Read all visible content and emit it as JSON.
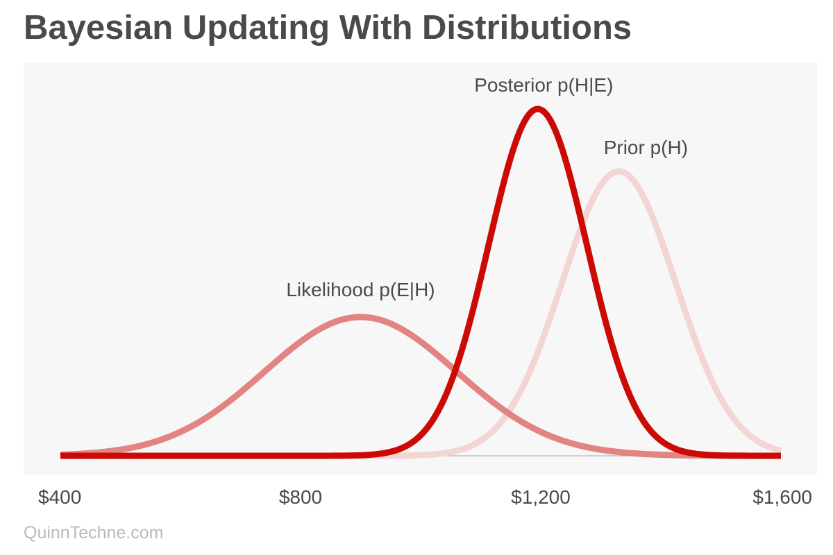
{
  "chart_data": {
    "type": "line",
    "title": "Bayesian Updating With Distributions",
    "xlabel": "",
    "ylabel": "",
    "xlim": [
      400,
      1600
    ],
    "ylim": [
      0,
      1.0
    ],
    "x_ticks": [
      {
        "value": 400,
        "label": "$400"
      },
      {
        "value": 800,
        "label": "$800"
      },
      {
        "value": 1200,
        "label": "$1,200"
      },
      {
        "value": 1600,
        "label": "$1,600"
      }
    ],
    "grid": false,
    "legend": "none",
    "series": [
      {
        "name": "Prior p(H)",
        "color": "#f3d6d4",
        "distribution": "normal",
        "mean": 1330,
        "sd": 95,
        "peak": 0.82,
        "label_x": 1375,
        "label_y": 0.87
      },
      {
        "name": "Likelihood p(E|H)",
        "color": "#e28482",
        "distribution": "normal",
        "mean": 900,
        "sd": 160,
        "peak": 0.4,
        "label_x": 900,
        "label_y": 0.46
      },
      {
        "name": "Posterior p(H|E)",
        "color": "#cc0a05",
        "distribution": "normal",
        "mean": 1195,
        "sd": 82,
        "peak": 1.0,
        "label_x": 1205,
        "label_y": 1.05
      }
    ]
  },
  "credit": "QuinnTechne.com"
}
